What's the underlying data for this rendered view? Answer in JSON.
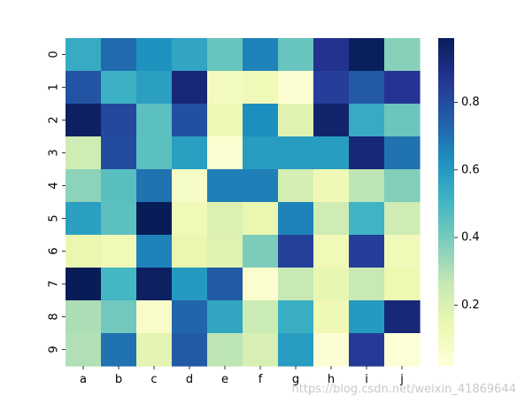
{
  "chart_data": {
    "type": "heatmap",
    "title": "",
    "xlabel": "",
    "ylabel": "",
    "x_categories": [
      "a",
      "b",
      "c",
      "d",
      "e",
      "f",
      "g",
      "h",
      "i",
      "j"
    ],
    "y_categories": [
      "0",
      "1",
      "2",
      "3",
      "4",
      "5",
      "6",
      "7",
      "8",
      "9"
    ],
    "values": [
      [
        0.54,
        0.72,
        0.62,
        0.56,
        0.43,
        0.66,
        0.43,
        0.88,
        0.98,
        0.37
      ],
      [
        0.78,
        0.52,
        0.58,
        0.93,
        0.1,
        0.12,
        0.04,
        0.84,
        0.76,
        0.87
      ],
      [
        0.97,
        0.81,
        0.45,
        0.79,
        0.13,
        0.63,
        0.18,
        0.95,
        0.54,
        0.42
      ],
      [
        0.24,
        0.8,
        0.45,
        0.58,
        0.04,
        0.59,
        0.59,
        0.59,
        0.93,
        0.7
      ],
      [
        0.36,
        0.46,
        0.7,
        0.08,
        0.67,
        0.67,
        0.22,
        0.13,
        0.28,
        0.38
      ],
      [
        0.58,
        0.45,
        0.99,
        0.12,
        0.2,
        0.15,
        0.66,
        0.24,
        0.51,
        0.24
      ],
      [
        0.15,
        0.12,
        0.66,
        0.15,
        0.19,
        0.39,
        0.83,
        0.12,
        0.84,
        0.12
      ],
      [
        0.99,
        0.5,
        0.97,
        0.6,
        0.76,
        0.05,
        0.26,
        0.16,
        0.26,
        0.14
      ],
      [
        0.31,
        0.41,
        0.07,
        0.73,
        0.56,
        0.25,
        0.53,
        0.13,
        0.6,
        0.93
      ],
      [
        0.3,
        0.7,
        0.17,
        0.76,
        0.28,
        0.21,
        0.59,
        0.04,
        0.85,
        0.03
      ]
    ],
    "colorbar": {
      "min": 0.02,
      "max": 0.99,
      "ticks": [
        0.2,
        0.4,
        0.6,
        0.8
      ],
      "tick_labels": [
        "0.2",
        "0.4",
        "0.6",
        "0.8"
      ],
      "colormap": "YlGnBu"
    },
    "watermark": "https://blog.csdn.net/weixin_41869644"
  }
}
